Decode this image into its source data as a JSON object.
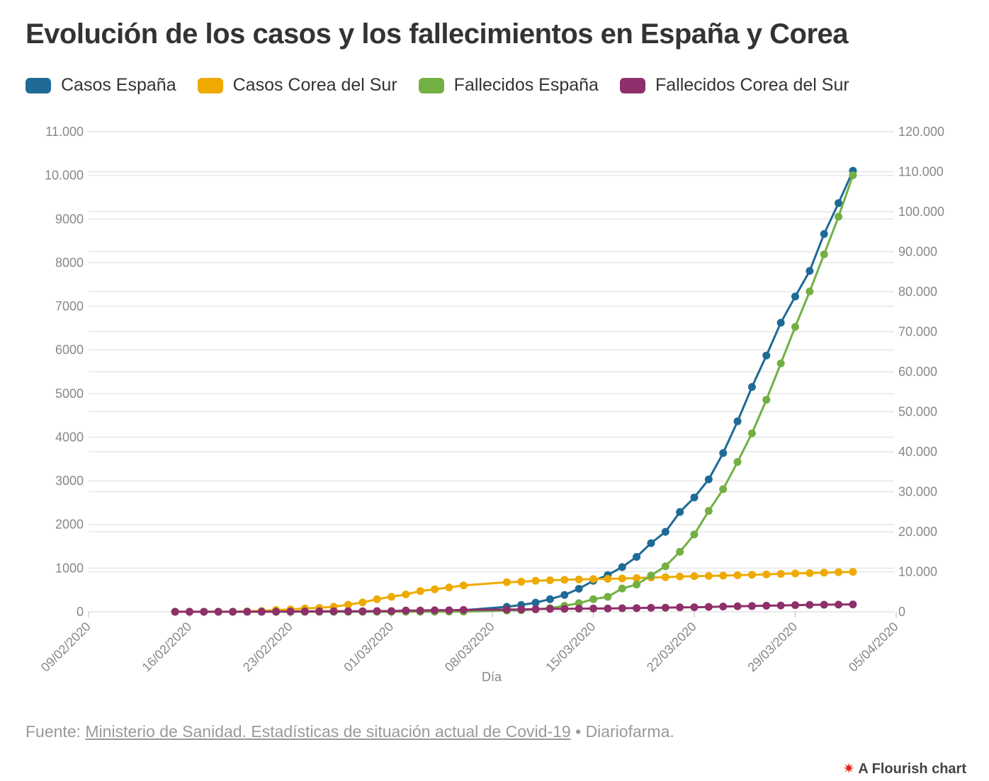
{
  "chart_data": {
    "type": "line",
    "title": "Evolución de los casos y los fallecimientos en España y Corea",
    "xlabel": "Día",
    "x": [
      "15/02/2020",
      "16/02/2020",
      "17/02/2020",
      "18/02/2020",
      "19/02/2020",
      "20/02/2020",
      "21/02/2020",
      "22/02/2020",
      "23/02/2020",
      "24/02/2020",
      "25/02/2020",
      "26/02/2020",
      "27/02/2020",
      "28/02/2020",
      "29/02/2020",
      "01/03/2020",
      "02/03/2020",
      "03/03/2020",
      "04/03/2020",
      "05/03/2020",
      "06/03/2020",
      "09/03/2020",
      "10/03/2020",
      "11/03/2020",
      "12/03/2020",
      "13/03/2020",
      "14/03/2020",
      "15/03/2020",
      "16/03/2020",
      "17/03/2020",
      "18/03/2020",
      "19/03/2020",
      "20/03/2020",
      "21/03/2020",
      "22/03/2020",
      "23/03/2020",
      "24/03/2020",
      "25/03/2020",
      "26/03/2020",
      "27/03/2020",
      "28/03/2020",
      "29/03/2020",
      "30/03/2020",
      "31/03/2020",
      "01/04/2020",
      "02/04/2020"
    ],
    "series": [
      {
        "name": "Casos España",
        "color": "#1f6a96",
        "axis": "y2",
        "values": [
          2,
          2,
          2,
          2,
          2,
          2,
          2,
          2,
          2,
          2,
          6,
          13,
          15,
          32,
          45,
          84,
          120,
          165,
          222,
          259,
          400,
          1231,
          1695,
          2277,
          3146,
          4209,
          5753,
          7753,
          9191,
          11178,
          13716,
          17147,
          19980,
          24926,
          28572,
          33089,
          39673,
          47610,
          56188,
          64059,
          72248,
          78797,
          85195,
          94417,
          102136,
          110238
        ]
      },
      {
        "name": "Casos Corea del Sur",
        "color": "#eeaa00",
        "axis": "y2",
        "values": [
          28,
          29,
          30,
          31,
          51,
          104,
          204,
          433,
          602,
          833,
          977,
          1261,
          1766,
          2337,
          3150,
          3736,
          4335,
          5186,
          5621,
          6088,
          6593,
          7382,
          7513,
          7755,
          7869,
          7979,
          8086,
          8162,
          8236,
          8320,
          8413,
          8565,
          8652,
          8799,
          8897,
          8961,
          9037,
          9137,
          9241,
          9332,
          9478,
          9583,
          9661,
          9786,
          9887,
          9976
        ]
      },
      {
        "name": "Fallecidos España",
        "color": "#72b043",
        "axis": "y",
        "values": [
          0,
          0,
          0,
          0,
          0,
          0,
          0,
          0,
          0,
          0,
          0,
          0,
          0,
          0,
          0,
          0,
          0,
          1,
          2,
          3,
          5,
          28,
          35,
          55,
          84,
          136,
          196,
          288,
          342,
          533,
          623,
          830,
          1043,
          1375,
          1772,
          2311,
          2808,
          3434,
          4089,
          4858,
          5690,
          6528,
          7340,
          8189,
          9053,
          10003
        ]
      },
      {
        "name": "Fallecidos Corea del Sur",
        "color": "#8e306b",
        "axis": "y",
        "values": [
          0,
          0,
          0,
          0,
          0,
          1,
          2,
          2,
          6,
          8,
          10,
          12,
          13,
          13,
          16,
          17,
          28,
          28,
          35,
          35,
          42,
          51,
          54,
          60,
          66,
          67,
          72,
          75,
          75,
          81,
          84,
          91,
          94,
          102,
          104,
          111,
          120,
          126,
          131,
          139,
          144,
          152,
          158,
          162,
          165,
          169
        ]
      }
    ],
    "xlim": [
      "09/02/2020",
      "05/04/2020"
    ],
    "xticks": [
      "09/02/2020",
      "16/02/2020",
      "23/02/2020",
      "01/03/2020",
      "08/03/2020",
      "15/03/2020",
      "22/03/2020",
      "29/03/2020",
      "05/04/2020"
    ],
    "ylim": [
      0,
      11000
    ],
    "yticks": [
      0,
      1000,
      2000,
      3000,
      4000,
      5000,
      6000,
      7000,
      8000,
      9000,
      {
        "value": 10000,
        "label": "10.000"
      },
      {
        "value": 11000,
        "label": "11.000"
      }
    ],
    "y2lim": [
      0,
      120000
    ],
    "y2ticks": [
      0,
      {
        "value": 10000,
        "label": "10.000"
      },
      {
        "value": 20000,
        "label": "20.000"
      },
      {
        "value": 30000,
        "label": "30.000"
      },
      {
        "value": 40000,
        "label": "40.000"
      },
      {
        "value": 50000,
        "label": "50.000"
      },
      {
        "value": 60000,
        "label": "60.000"
      },
      {
        "value": 70000,
        "label": "70.000"
      },
      {
        "value": 80000,
        "label": "80.000"
      },
      {
        "value": 90000,
        "label": "90.000"
      },
      {
        "value": 100000,
        "label": "100.000"
      },
      {
        "value": 110000,
        "label": "110.000"
      },
      {
        "value": 120000,
        "label": "120.000"
      }
    ],
    "grid": true,
    "source": {
      "prefix": "Fuente:",
      "link": "Ministerio de Sanidad. Estadísticas de situación actual de Covid-19",
      "suffix": "• Diariofarma."
    },
    "credit": "A Flourish chart"
  }
}
